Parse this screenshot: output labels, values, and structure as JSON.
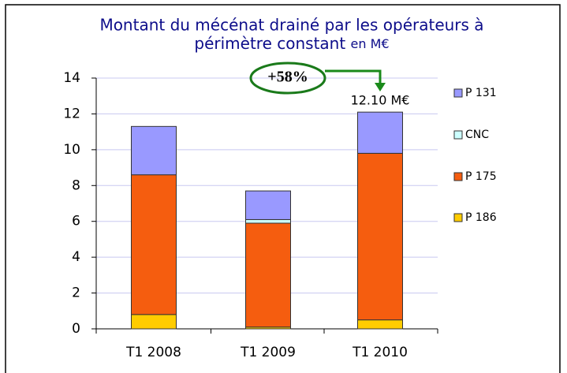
{
  "chart_data": {
    "type": "stacked_bar",
    "title": [
      "Montant du mécénat drainé par les opérateurs à",
      "périmètre constant"
    ],
    "title_unit": "en M€",
    "categories": [
      "T1 2008",
      "T1 2009",
      "T1 2010"
    ],
    "series": [
      {
        "name": "P 186",
        "color": "#ffcc00",
        "values": [
          0.8,
          0.1,
          0.5
        ]
      },
      {
        "name": "P 175",
        "color": "#f55d0f",
        "values": [
          7.8,
          5.8,
          9.3
        ]
      },
      {
        "name": "CNC",
        "color": "#ccffff",
        "values": [
          0,
          0.2,
          0
        ]
      },
      {
        "name": "P 131",
        "color": "#9999ff",
        "values": [
          2.7,
          1.6,
          2.3
        ]
      }
    ],
    "ylim": [
      0,
      14
    ],
    "yticks": [
      0,
      2,
      4,
      6,
      8,
      10,
      12,
      14
    ],
    "grid": true,
    "legend": "right",
    "annotations": [
      "12.10 M€",
      "+58%"
    ]
  }
}
